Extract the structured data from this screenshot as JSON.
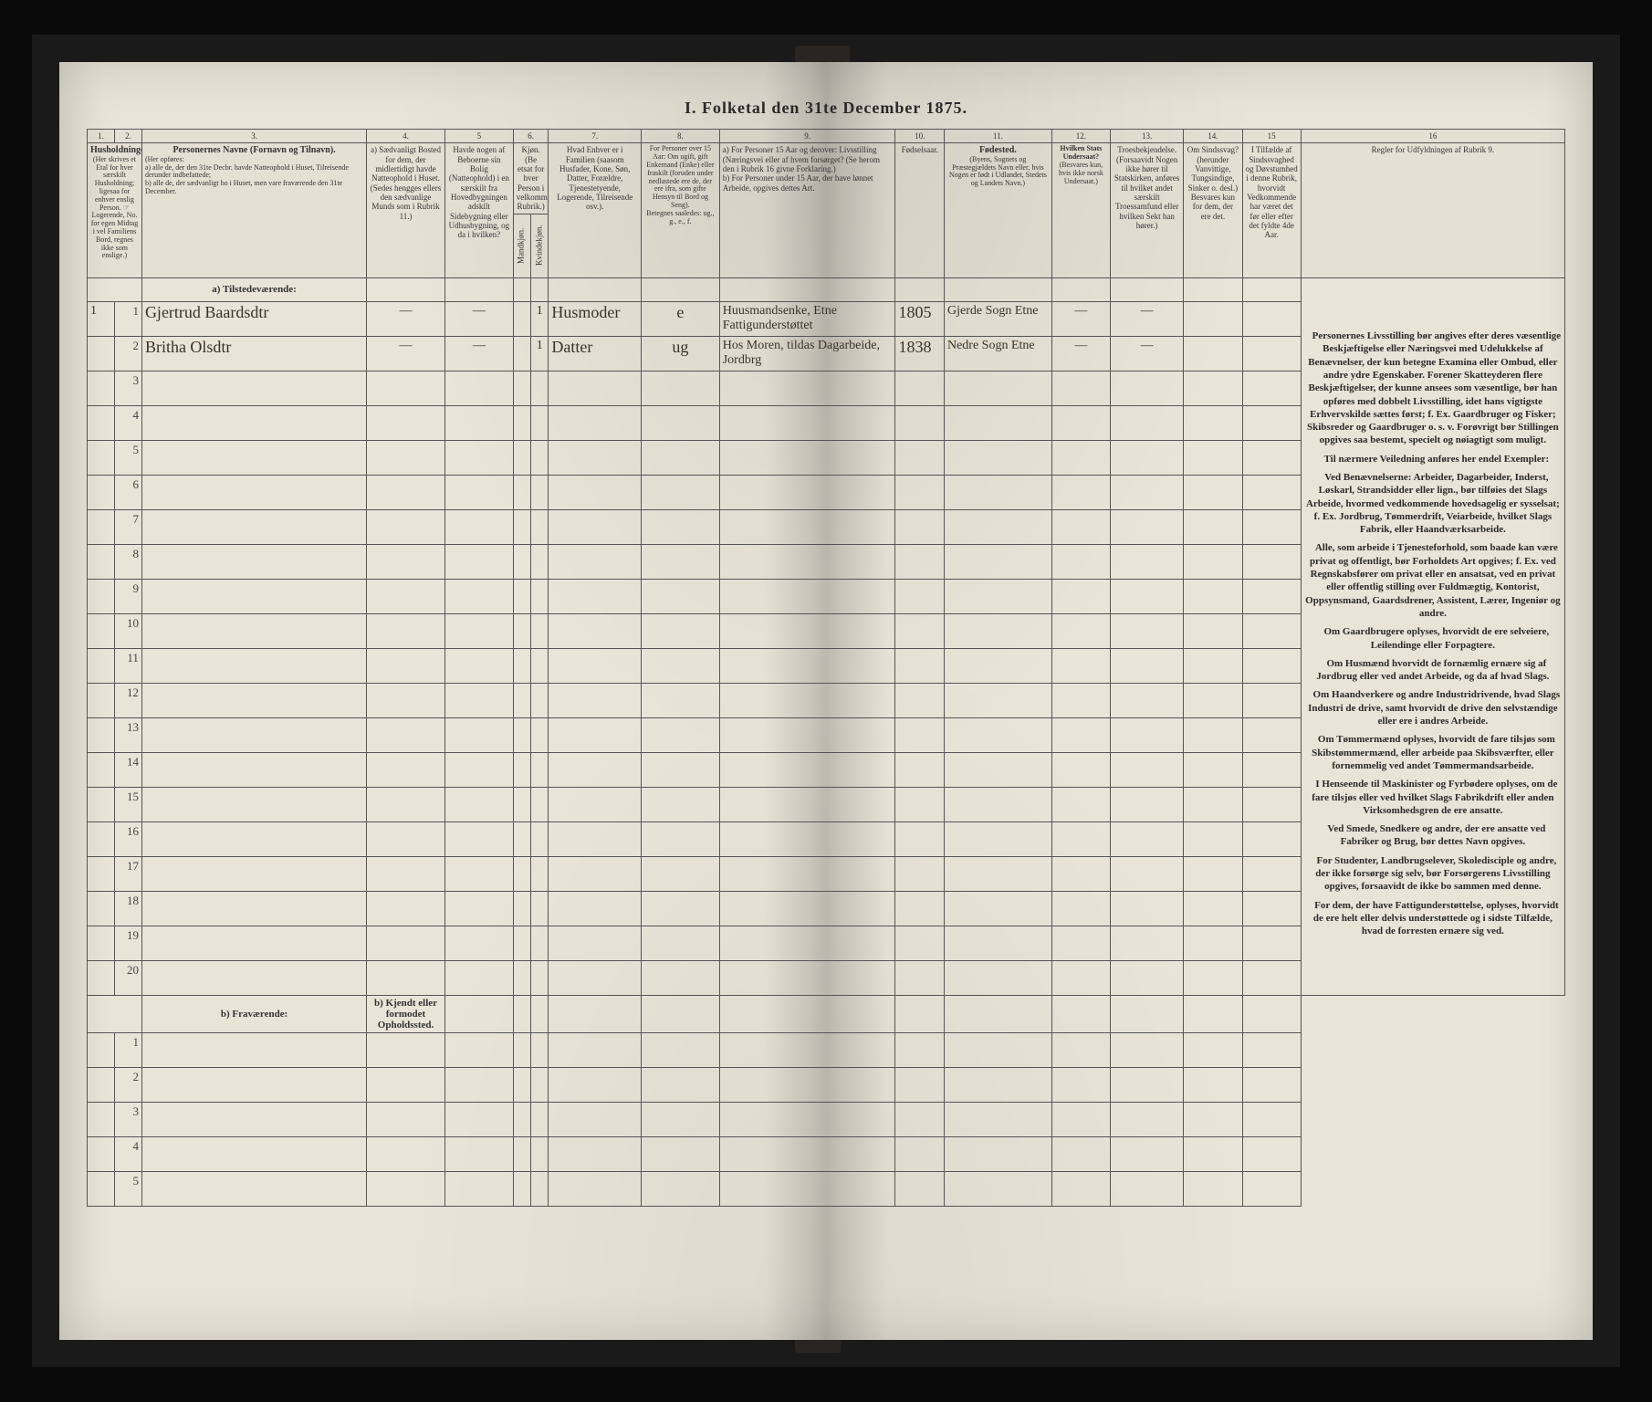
{
  "title": "I.  Folketal den 31te December 1875.",
  "columns": {
    "c1": "1.",
    "c2": "2.",
    "c3": "3.",
    "c4": "4.",
    "c5": "5",
    "c6": "6.",
    "c7": "7.",
    "c8": "8.",
    "c9": "9.",
    "c10": "10.",
    "c11": "11.",
    "c12": "12.",
    "c13": "13.",
    "c14": "14.",
    "c15": "15",
    "c16": "16"
  },
  "headers": {
    "h1_2": "Husholdninger.",
    "h1_2_sub": "(Her skrives et Etal for hver særskilt Husholdning; ligesaa for enhver enslig Person. ☞ Logerende, No. for egen Midtag i vel Familiens Bord, regnes ikke som enslige.)",
    "h3": "Personernes Navne (Fornavn og Tilnavn).",
    "h3_sub": "(Her opføres:\na) alle de, der den 31te Decbr. havde Natteophold i Huset, Tilreisende derunder indbefattede;\nb) alle de, der sædvanligt bo i Huset, men vare fraværende den 31te December.",
    "h4": "a) Sædvanligt Bosted for dem, der midlertidigt havde Natteophold i Huset. (Sedes hengges ellers den sædvanlige Munds som i Rubrik 11.)",
    "h5": "Havde nogen af Beboerne sin Bolig (Natteophold) i en særskilt fra Hovedbygningen adskilt Sidebygning eller Udhusbygning, og da i hvilken?",
    "h6": "Kjøn. (Be etsat for hver Person i velkommende Rubrik.)",
    "h6a": "Mandkjøn.",
    "h6b": "Kvindekjøn.",
    "h7": "Hvad Enhver er i Familien (saasom Husfader, Kone, Søn, Datter, Forældre, Tjenestetyende, Logerende, Tilreisende osv.).",
    "h8": "For Personer over 15 Aar: Om ugift, gift Enkemand (Enke) eller fraskilt (foruden under nedlastede ere de, der ere ifra, som gifte Hensyn til Bord og Seng).",
    "h8_sub": "Betegnes saaledes: ug., g., e., f.",
    "h9": "a) For Personer 15 Aar og derover: Livsstilling (Næringsvei eller af hvem forsørget? (Se herom den i Rubrik 16 givne Forklaring.)\nb) For Personer under 15 Aar, der have lønnet Arbeide, opgives dettes Art.",
    "h10": "Fødselsaar.",
    "h11": "Fødested.",
    "h11_sub": "(Byens, Sognets og Præstegjældets Navn eller, hvis Nogen er født i Udlandet, Stedets og Landets Navn.)",
    "h12": "Hvilken Stats Undersaat?",
    "h12_sub": "(Besvares kun, hvis ikke norsk Undersaat.)",
    "h13": "Troesbekjendelse. (Forsaavidt Nogen ikke hører til Statskirken, anføres til hvilket andet særskilt Troessamfund eller hvilken Sekt han hører.)",
    "h14": "Om Sindssvag? (herunder Vanvittige, Tungsindige, Sinker o. desl.) Besvares kun for dem, der ere det.",
    "h15": "I Tilfælde af Sindssvaghed og Døvstumhed i denne Rubrik, hvorvidt Vedkommende har været det før eller efter det fyldte 4de Aar.",
    "h16": "Regler for Udfyldningen af Rubrik 9."
  },
  "section_a": "a) Tilstedeværende:",
  "section_b": "b) Fraværende:",
  "section_b4": "b) Kjendt eller formodet Opholdssted.",
  "rows_a": [
    {
      "n": "1",
      "hh": "1",
      "name": "Gjertrud Baardsdtr",
      "c4": "—",
      "c5": "—",
      "c6b": "1",
      "fam": "Husmoder",
      "civ": "e",
      "occ": "Huusmandsenke, Etne Fattigunderstøttet",
      "yr": "1805",
      "place": "Gjerde Sogn Etne",
      "c12": "—",
      "c13": "—"
    },
    {
      "n": "2",
      "hh": "",
      "name": "Britha Olsdtr",
      "c4": "—",
      "c5": "—",
      "c6b": "1",
      "fam": "Datter",
      "civ": "ug",
      "occ": "Hos Moren, tildas Dagarbeide, Jordbrg",
      "yr": "1838",
      "place": "Nedre Sogn Etne",
      "c12": "—",
      "c13": "—"
    },
    {
      "n": "3"
    },
    {
      "n": "4"
    },
    {
      "n": "5"
    },
    {
      "n": "6"
    },
    {
      "n": "7"
    },
    {
      "n": "8"
    },
    {
      "n": "9"
    },
    {
      "n": "10"
    },
    {
      "n": "11"
    },
    {
      "n": "12"
    },
    {
      "n": "13"
    },
    {
      "n": "14"
    },
    {
      "n": "15"
    },
    {
      "n": "16"
    },
    {
      "n": "17"
    },
    {
      "n": "18"
    },
    {
      "n": "19"
    },
    {
      "n": "20"
    }
  ],
  "rows_b": [
    {
      "n": "1"
    },
    {
      "n": "2"
    },
    {
      "n": "3"
    },
    {
      "n": "4"
    },
    {
      "n": "5"
    }
  ],
  "rules": {
    "p1": "Personernes Livsstilling bør angives efter deres væsentlige Beskjæftigelse eller Næringsvei med Udelukkelse af Benævnelser, der kun betegne Examina eller Ombud, eller andre ydre Egenskaber. Forener Skatteyderen flere Beskjæftigelser, der kunne ansees som væsentlige, bør han opføres med dobbelt Livsstilling, idet hans vigtigste Erhvervskilde sættes først; f. Ex. Gaardbruger og Fisker; Skibsreder og Gaardbruger o. s. v. Forøvrigt bør Stillingen opgives saa bestemt, specielt og nøiagtigt som muligt.",
    "p2": "Til nærmere Veiledning anføres her endel Exempler:",
    "p3": "Ved Benævnelserne: Arbeider, Dagarbeider, Inderst, Løskarl, Strandsidder eller lign., bør tilføies det Slags Arbeide, hvormed vedkommende hovedsagelig er sysselsat; f. Ex. Jordbrug, Tømmerdrift, Veiarbeide, hvilket Slags Fabrik, eller Haandværksarbeide.",
    "p4": "Alle, som arbeide i Tjenesteforhold, som baade kan være privat og offentligt, bør Forholdets Art opgives; f. Ex. ved Regnskabsfører om privat eller en ansatsat, ved en privat eller offentlig stilling over Fuldmægtig, Kontorist, Oppsynsmand, Gaardsdrener, Assistent, Lærer, Ingeniør og andre.",
    "p5": "Om Gaardbrugere oplyses, hvorvidt de ere selveiere, Leilendinge eller Forpagtere.",
    "p6": "Om Husmænd hvorvidt de fornæmlig ernære sig af Jordbrug eller ved andet Arbeide, og da af hvad Slags.",
    "p7": "Om Haandverkere og andre Industridrivende, hvad Slags Industri de drive, samt hvorvidt de drive den selvstændige eller ere i andres Arbeide.",
    "p8": "Om Tømmermænd oplyses, hvorvidt de fare tilsjøs som Skibstømmermænd, eller arbeide paa Skibsværfter, eller fornemmelig ved andet Tømmermandsarbeide.",
    "p9": "I Henseende til Maskinister og Fyrbødere oplyses, om de fare tilsjøs eller ved hvilket Slags Fabrikdrift eller anden Virksomhedsgren de ere ansatte.",
    "p10": "Ved Smede, Snedkere og andre, der ere ansatte ved Fabriker og Brug, bør dettes Navn opgives.",
    "p11": "For Studenter, Landbrugselever, Skoledisciple og andre, der ikke forsørge sig selv, bør Forsørgerens Livsstilling opgives, forsaavidt de ikke bo sammen med denne.",
    "p12": "For dem, der have Fattigunderstøttelse, oplyses, hvorvidt de ere helt eller delvis understøttede og i sidste Tilfælde, hvad de forresten ernære sig ved."
  },
  "style": {
    "page_bg": "#e8e4d8",
    "frame_bg": "#0a0a0a",
    "rule_color": "#555",
    "hand_color": "#3a3228",
    "text_color": "#2a2a2a"
  }
}
